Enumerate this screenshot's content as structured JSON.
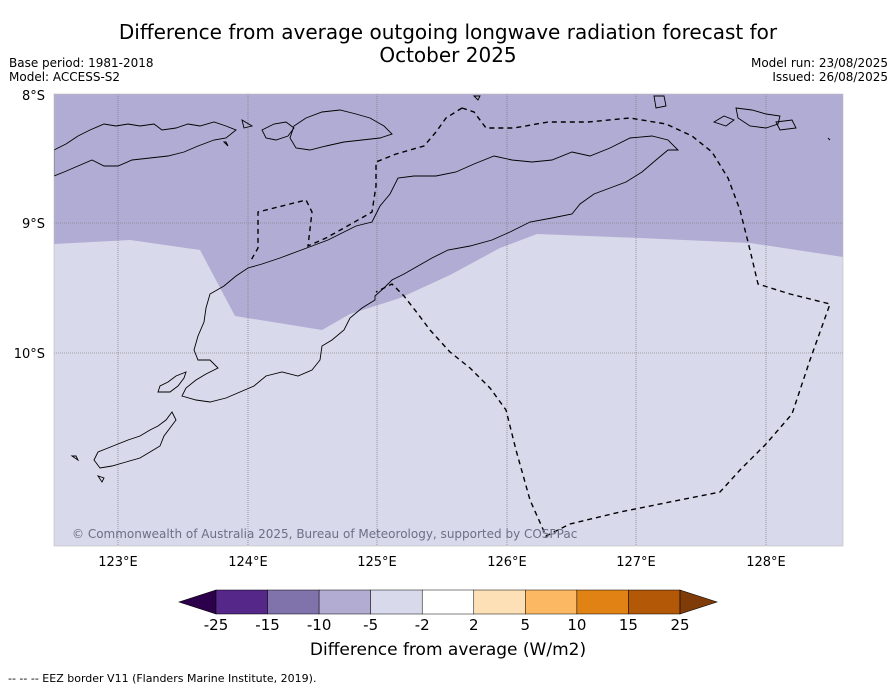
{
  "title": {
    "line1": "Difference from average outgoing longwave radiation forecast for",
    "line2": "October 2025"
  },
  "meta": {
    "base_period": "Base period: 1981-2018",
    "model": "Model: ACCESS-S2",
    "model_run": "Model run: 23/08/2025",
    "issued": "Issued: 26/08/2025"
  },
  "map": {
    "lat_labels": [
      "8°S",
      "9°S",
      "10°S"
    ],
    "lon_labels": [
      "123°E",
      "124°E",
      "125°E",
      "126°E",
      "127°E",
      "128°E"
    ],
    "copyright": "© Commonwealth of Australia 2025, Bureau of Meteorology, supported by COSPPac",
    "fill_colors": {
      "minus10_to_minus5": "#b1acd3",
      "minus5_to_minus2": "#d8d9ea"
    }
  },
  "colorbar": {
    "title": "Difference from average (W/m2)",
    "tick_labels": [
      "-25",
      "-15",
      "-10",
      "-5",
      "-2",
      "2",
      "5",
      "10",
      "15",
      "25"
    ],
    "colors": [
      "#542788",
      "#8073ac",
      "#b2abd2",
      "#d8daeb",
      "#ffffff",
      "#fee0b6",
      "#fdb863",
      "#e08214",
      "#b35806"
    ],
    "under_color": "#2d004b",
    "over_color": "#7f3b08"
  },
  "footnote": "--  --  -- EEZ border V11 (Flanders Marine Institute, 2019)."
}
